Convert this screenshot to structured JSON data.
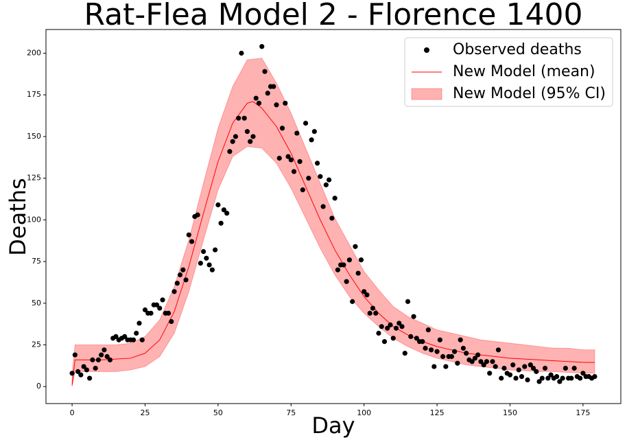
{
  "chart_data": {
    "type": "line",
    "title": "Rat-Flea Model 2 - Florence 1400",
    "x_label": "Day",
    "y_label": "Deaths",
    "xlim": [
      -8.95,
      187.95
    ],
    "ylim": [
      -10.2,
      214.2
    ],
    "xticks": [
      0,
      25,
      50,
      75,
      100,
      125,
      150,
      175
    ],
    "yticks": [
      0,
      25,
      50,
      75,
      100,
      125,
      150,
      175,
      200
    ],
    "legend": "upper right",
    "series": [
      {
        "name": "Observed deaths",
        "kind": "scatter",
        "color": "#000000",
        "x": [
          0,
          1,
          2,
          3,
          4,
          5,
          6,
          7,
          8,
          9,
          10,
          11,
          12,
          13,
          14,
          15,
          16,
          17,
          18,
          19,
          20,
          21,
          22,
          23,
          24,
          25,
          26,
          27,
          28,
          29,
          30,
          31,
          32,
          33,
          34,
          35,
          36,
          37,
          38,
          39,
          40,
          41,
          42,
          43,
          44,
          45,
          46,
          47,
          48,
          49,
          50,
          51,
          52,
          53,
          54,
          55,
          56,
          57,
          58,
          59,
          60,
          61,
          62,
          63,
          64,
          65,
          66,
          67,
          68,
          69,
          70,
          71,
          72,
          73,
          74,
          75,
          76,
          77,
          78,
          79,
          80,
          81,
          82,
          83,
          84,
          85,
          86,
          87,
          88,
          89,
          90,
          91,
          92,
          93,
          94,
          95,
          96,
          97,
          98,
          99,
          100,
          101,
          102,
          103,
          104,
          105,
          106,
          107,
          108,
          109,
          110,
          111,
          112,
          113,
          114,
          115,
          116,
          117,
          118,
          119,
          120,
          121,
          122,
          123,
          124,
          125,
          126,
          127,
          128,
          129,
          130,
          131,
          132,
          133,
          134,
          135,
          136,
          137,
          138,
          139,
          140,
          141,
          142,
          143,
          144,
          145,
          146,
          147,
          148,
          149,
          150,
          151,
          152,
          153,
          154,
          155,
          156,
          157,
          158,
          159,
          160,
          161,
          162,
          163,
          164,
          165,
          166,
          167,
          168,
          169,
          170,
          171,
          172,
          173,
          174,
          175,
          176,
          177,
          178,
          179
        ],
        "values": [
          8,
          19,
          9,
          7,
          12,
          10,
          5,
          16,
          11,
          16,
          19,
          22,
          18,
          16,
          29,
          30,
          28,
          29,
          30,
          28,
          28,
          28,
          32,
          38,
          28,
          46,
          44,
          44,
          49,
          49,
          47,
          52,
          44,
          44,
          39,
          57,
          62,
          67,
          70,
          64,
          91,
          87,
          102,
          103,
          74,
          81,
          77,
          73,
          70,
          82,
          109,
          98,
          106,
          104,
          141,
          147,
          150,
          161,
          200,
          161,
          153,
          147,
          150,
          173,
          170,
          204,
          189,
          176,
          180,
          180,
          169,
          137,
          155,
          170,
          138,
          136,
          129,
          152,
          135,
          118,
          158,
          125,
          148,
          153,
          134,
          126,
          108,
          121,
          124,
          101,
          113,
          70,
          73,
          73,
          63,
          76,
          51,
          84,
          68,
          76,
          57,
          55,
          44,
          47,
          44,
          32,
          36,
          27,
          35,
          37,
          29,
          35,
          38,
          36,
          20,
          51,
          30,
          42,
          29,
          27,
          27,
          23,
          34,
          22,
          12,
          21,
          28,
          18,
          12,
          18,
          18,
          21,
          14,
          28,
          23,
          20,
          16,
          15,
          17,
          19,
          15,
          13,
          15,
          8,
          15,
          12,
          22,
          5,
          11,
          8,
          7,
          13,
          5,
          10,
          6,
          12,
          4,
          13,
          11,
          9,
          3,
          5,
          11,
          5,
          7,
          5,
          6,
          3,
          5,
          11,
          5,
          5,
          11,
          6,
          5,
          8,
          6,
          6,
          5,
          6
        ]
      },
      {
        "name": "New Model (mean)",
        "kind": "line",
        "color": "#ff0000",
        "x": [
          0,
          1,
          5,
          10,
          15,
          20,
          25,
          30,
          35,
          40,
          45,
          50,
          55,
          60,
          62,
          65,
          70,
          75,
          80,
          85,
          90,
          95,
          100,
          105,
          110,
          115,
          120,
          125,
          130,
          135,
          140,
          145,
          150,
          155,
          160,
          165,
          170,
          175,
          179
        ],
        "values": [
          1,
          16,
          16,
          16,
          16.5,
          17,
          20,
          28,
          45,
          72,
          104,
          135,
          158,
          170,
          171,
          167,
          156,
          140,
          120,
          100,
          82,
          67,
          54,
          44,
          36,
          31,
          27,
          24,
          22,
          20,
          19,
          18,
          17,
          16.5,
          16,
          15.5,
          15,
          14.5,
          14.5
        ]
      },
      {
        "name": "New Model (95% CI)",
        "kind": "band",
        "color": "#ff0000",
        "alpha": 0.3,
        "x": [
          0,
          1,
          10,
          15,
          20,
          25,
          30,
          35,
          40,
          45,
          50,
          55,
          60,
          65,
          70,
          75,
          80,
          85,
          90,
          95,
          100,
          105,
          110,
          115,
          120,
          125,
          130,
          135,
          140,
          145,
          150,
          155,
          160,
          165,
          170,
          175,
          179
        ],
        "lower": [
          0,
          9,
          9,
          9,
          10,
          12,
          18,
          32,
          57,
          88,
          118,
          138,
          144,
          143,
          134,
          119,
          101,
          83,
          67,
          54,
          44,
          36,
          29,
          24,
          20,
          17,
          15,
          13,
          12,
          11,
          10,
          9.5,
          9,
          9,
          8.5,
          8,
          8
        ],
        "upper": [
          8,
          25,
          25,
          25,
          26,
          30,
          40,
          60,
          88,
          122,
          155,
          180,
          196,
          197,
          182,
          164,
          143,
          122,
          101,
          85,
          69,
          58,
          48,
          42,
          38,
          34,
          32,
          30,
          28,
          27,
          26,
          25,
          24,
          23,
          23,
          22,
          22
        ]
      }
    ]
  }
}
